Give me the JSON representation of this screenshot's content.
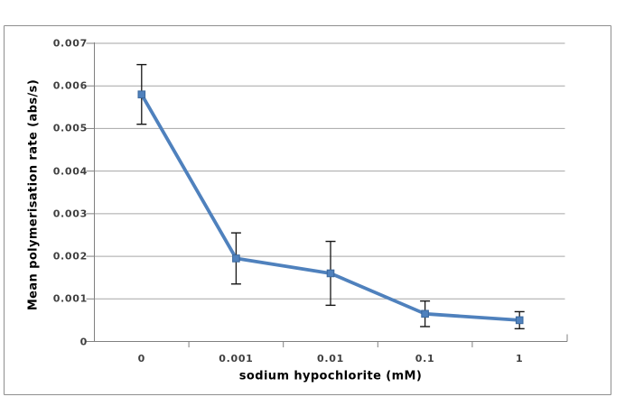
{
  "figure": {
    "background": "#ffffff",
    "frame_border_color": "#8f8f8f"
  },
  "chart_data": {
    "type": "line",
    "title": "",
    "xlabel": "sodium hypochlorite (mM)",
    "ylabel": "Mean polymerisation rate (abs/s)",
    "categories": [
      "0",
      "0.001",
      "0.01",
      "0.1",
      "1"
    ],
    "series": [
      {
        "name": "Mean polymerisation rate",
        "values": [
          0.0058,
          0.00195,
          0.0016,
          0.00065,
          0.0005
        ],
        "error_plus": [
          0.0007,
          0.0006,
          0.00075,
          0.0003,
          0.0002
        ],
        "error_minus": [
          0.0007,
          0.0006,
          0.00075,
          0.0003,
          0.0002
        ],
        "color": "#4F81BD",
        "marker": "square",
        "marker_border_color": "#3A679C"
      }
    ],
    "ylim": [
      0,
      0.007
    ],
    "y_tick_step": 0.001,
    "y_tick_labels": [
      "0",
      "0.001",
      "0.002",
      "0.003",
      "0.004",
      "0.005",
      "0.006",
      "0.007"
    ],
    "grid": "horizontal",
    "legend": "none",
    "gridline_color": "#a6a6a6",
    "axis_color": "#808080",
    "error_bar_color": "#151515",
    "tick_label_color": "#3f3f3f"
  }
}
